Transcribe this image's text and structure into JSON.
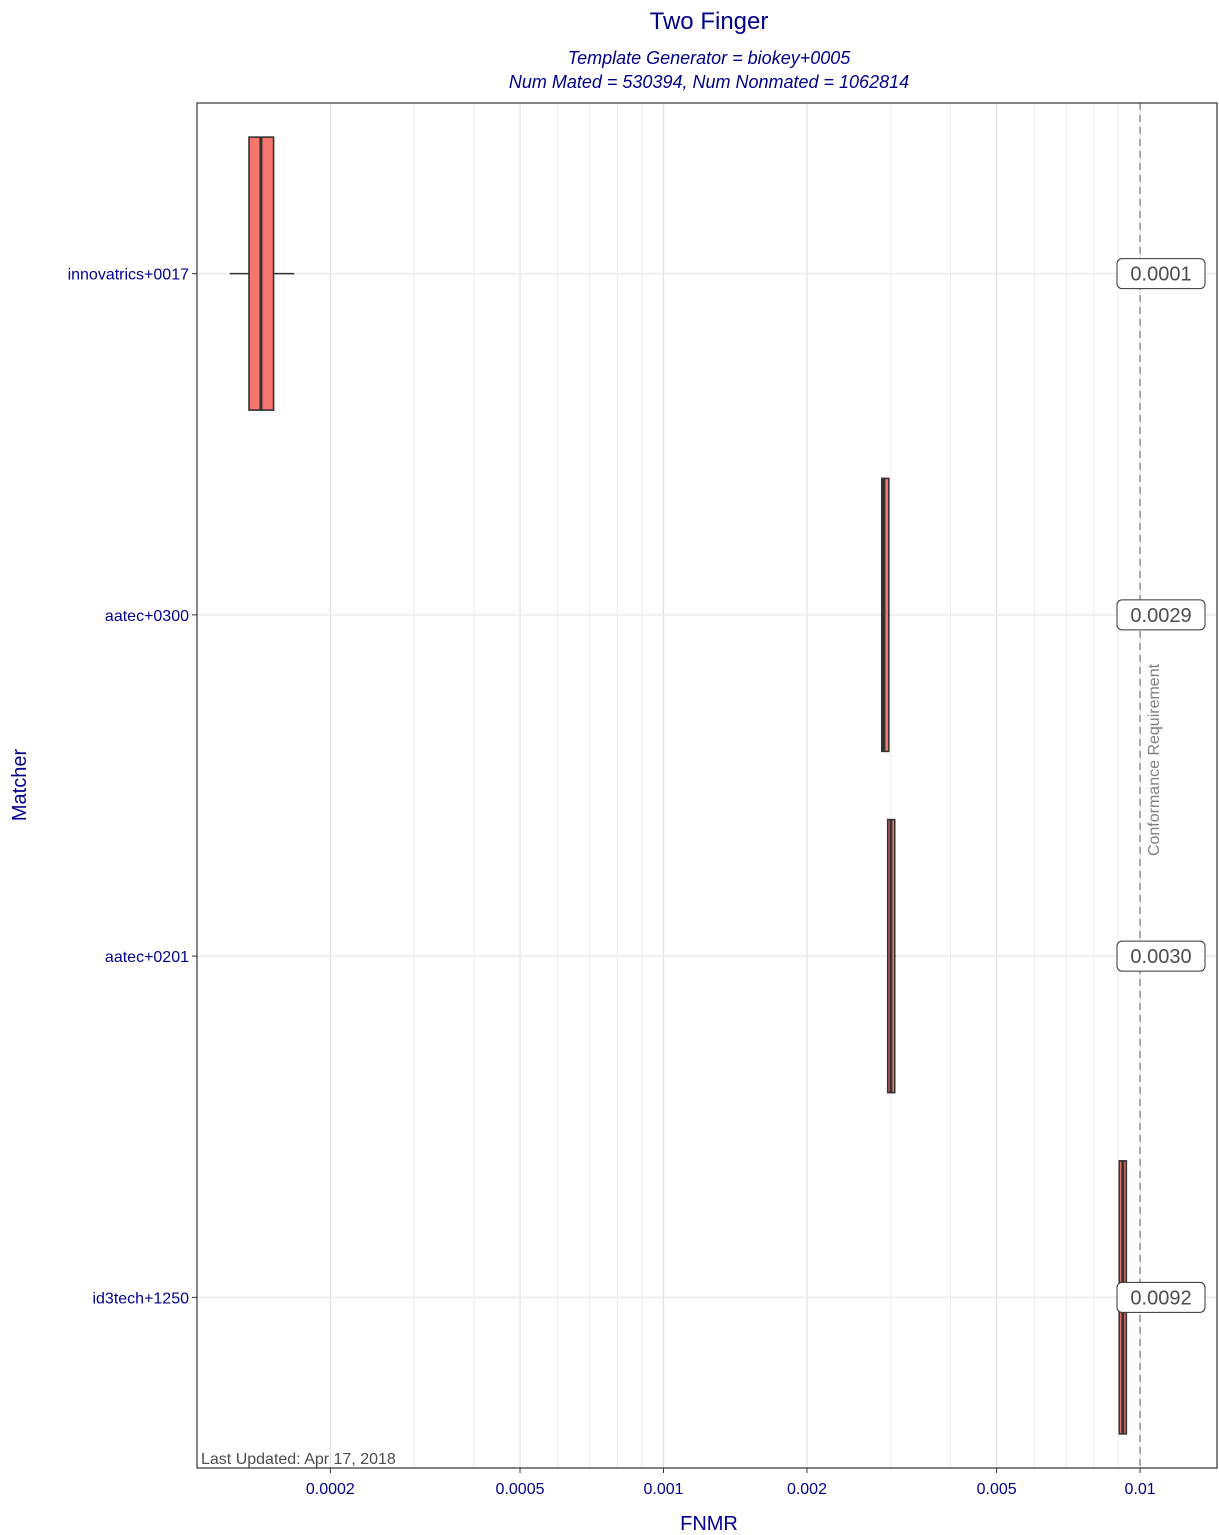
{
  "chart_data": {
    "type": "boxplot",
    "title": "Two Finger",
    "subtitle_lines": [
      "Template Generator = biokey+0005",
      "Num Mated = 530394, Num Nonmated = 1062814"
    ],
    "xlabel": "FNMR",
    "ylabel": "Matcher",
    "x_scale": "log",
    "xlim": [
      0.000105,
      0.0145
    ],
    "x_ticks": [
      0.0002,
      0.0005,
      0.001,
      0.002,
      0.005,
      0.01
    ],
    "x_tick_labels": [
      "0.0002",
      "0.0005",
      "0.001",
      "0.002",
      "0.005",
      "0.01"
    ],
    "x_minor_grid": [
      0.0003,
      0.0004,
      0.0006,
      0.0007,
      0.0008,
      0.0009,
      0.003,
      0.004,
      0.006,
      0.007,
      0.008,
      0.009
    ],
    "grid": true,
    "reference_line": {
      "x": 0.01,
      "label": "Conformance Requirement",
      "style": "dashed",
      "color": "#999999"
    },
    "footnote": "Last Updated: Apr 17, 2018",
    "matchers": [
      {
        "name": "innovatrics+0017",
        "fnmr_label": "0.0001",
        "whisker_low": 0.000123,
        "q1": 0.000135,
        "median": 0.000143,
        "q3": 0.000152,
        "whisker_high": 0.000168,
        "fill": "#F8766D"
      },
      {
        "name": "aatec+0300",
        "fnmr_label": "0.0029",
        "whisker_low": 0.00287,
        "q1": 0.00289,
        "median": 0.0029,
        "q3": 0.00295,
        "whisker_high": 0.00298,
        "fill": "#F8766D"
      },
      {
        "name": "aatec+0201",
        "fnmr_label": "0.0030",
        "whisker_low": 0.00295,
        "q1": 0.00297,
        "median": 0.003,
        "q3": 0.00304,
        "whisker_high": 0.00307,
        "fill": "#F8766D"
      },
      {
        "name": "id3tech+1250",
        "fnmr_label": "0.0092",
        "whisker_low": 0.0091,
        "q1": 0.00912,
        "median": 0.0092,
        "q3": 0.00928,
        "whisker_high": 0.0093,
        "fill": "#F8766D"
      }
    ]
  }
}
